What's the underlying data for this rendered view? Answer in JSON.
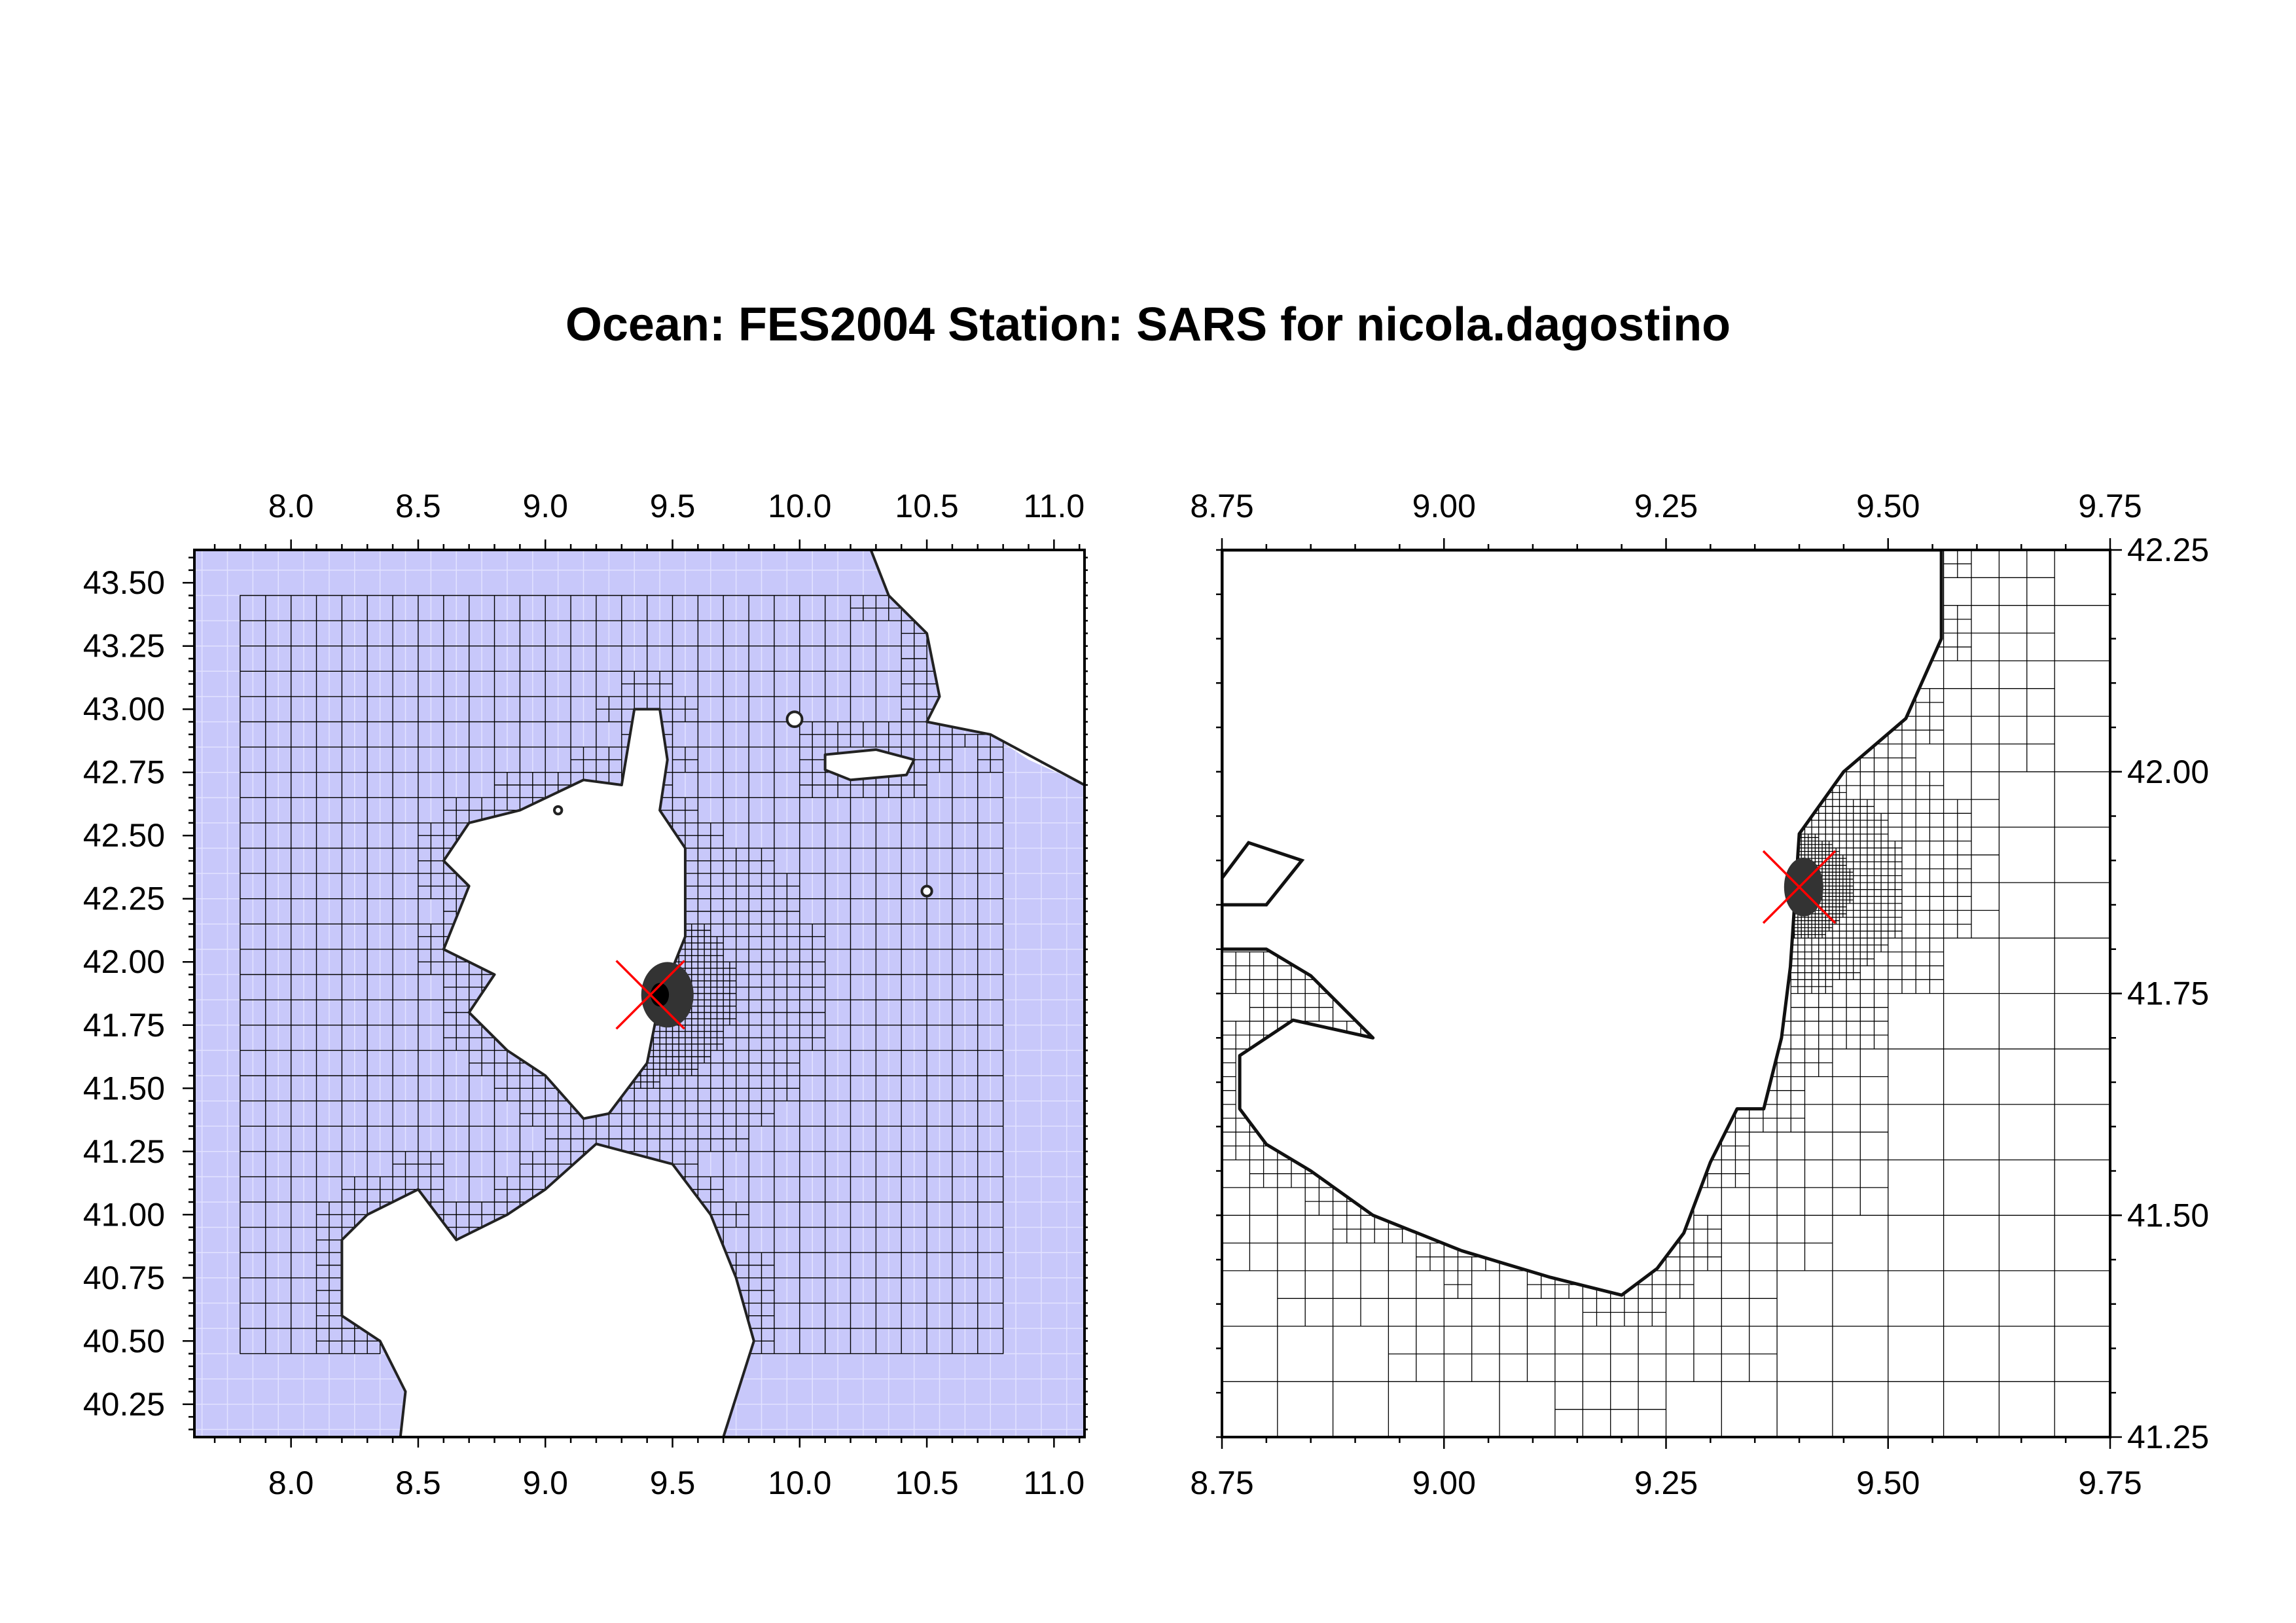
{
  "title": "Ocean: FES2004  Station: SARS  for nicola.dagostino",
  "colors": {
    "ocean_fill": "#c8c8fa",
    "ocean_grid": "#e2e2ff",
    "mesh": "#000000",
    "land": "#ffffff",
    "refined_core": "#333333",
    "station_marker": "#ff0000"
  },
  "station": {
    "name": "SARS",
    "lon": 9.4,
    "lat": 41.87,
    "marker": "red-x"
  },
  "chart_data": [
    {
      "type": "map",
      "panel": "overview",
      "xlim": [
        7.62,
        11.12
      ],
      "ylim": [
        40.12,
        43.63
      ],
      "x_ticks": [
        "8.0",
        "8.5",
        "9.0",
        "9.5",
        "10.0",
        "10.5",
        "11.0"
      ],
      "x_tick_values": [
        8.0,
        8.5,
        9.0,
        9.5,
        10.0,
        10.5,
        11.0
      ],
      "y_ticks": [
        "43.50",
        "43.25",
        "43.00",
        "42.75",
        "42.50",
        "42.25",
        "42.00",
        "41.75",
        "41.50",
        "41.25",
        "41.00",
        "40.75",
        "40.50",
        "40.25"
      ],
      "y_tick_values": [
        43.5,
        43.25,
        43.0,
        42.75,
        42.5,
        42.25,
        42.0,
        41.75,
        41.5,
        41.25,
        41.0,
        40.75,
        40.5,
        40.25
      ],
      "x_tick_side": [
        "top",
        "bottom"
      ],
      "y_tick_side": "left",
      "land_regions": [
        "Corsica",
        "Sardinia",
        "Elba"
      ],
      "mesh_extent_lon": [
        7.8,
        10.8
      ],
      "mesh_extent_lat": [
        40.45,
        43.45
      ]
    },
    {
      "type": "map",
      "panel": "zoom",
      "xlim": [
        8.75,
        9.75
      ],
      "ylim": [
        41.25,
        42.25
      ],
      "x_ticks": [
        "8.75",
        "9.00",
        "9.25",
        "9.50",
        "9.75"
      ],
      "x_tick_values": [
        8.75,
        9.0,
        9.25,
        9.5,
        9.75
      ],
      "y_ticks": [
        "42.25",
        "42.00",
        "41.75",
        "41.50",
        "41.25"
      ],
      "y_tick_values": [
        42.25,
        42.0,
        41.75,
        41.5,
        41.25
      ],
      "x_tick_side": [
        "top",
        "bottom"
      ],
      "y_tick_side": "right",
      "land_regions": [
        "Corsica"
      ]
    }
  ]
}
